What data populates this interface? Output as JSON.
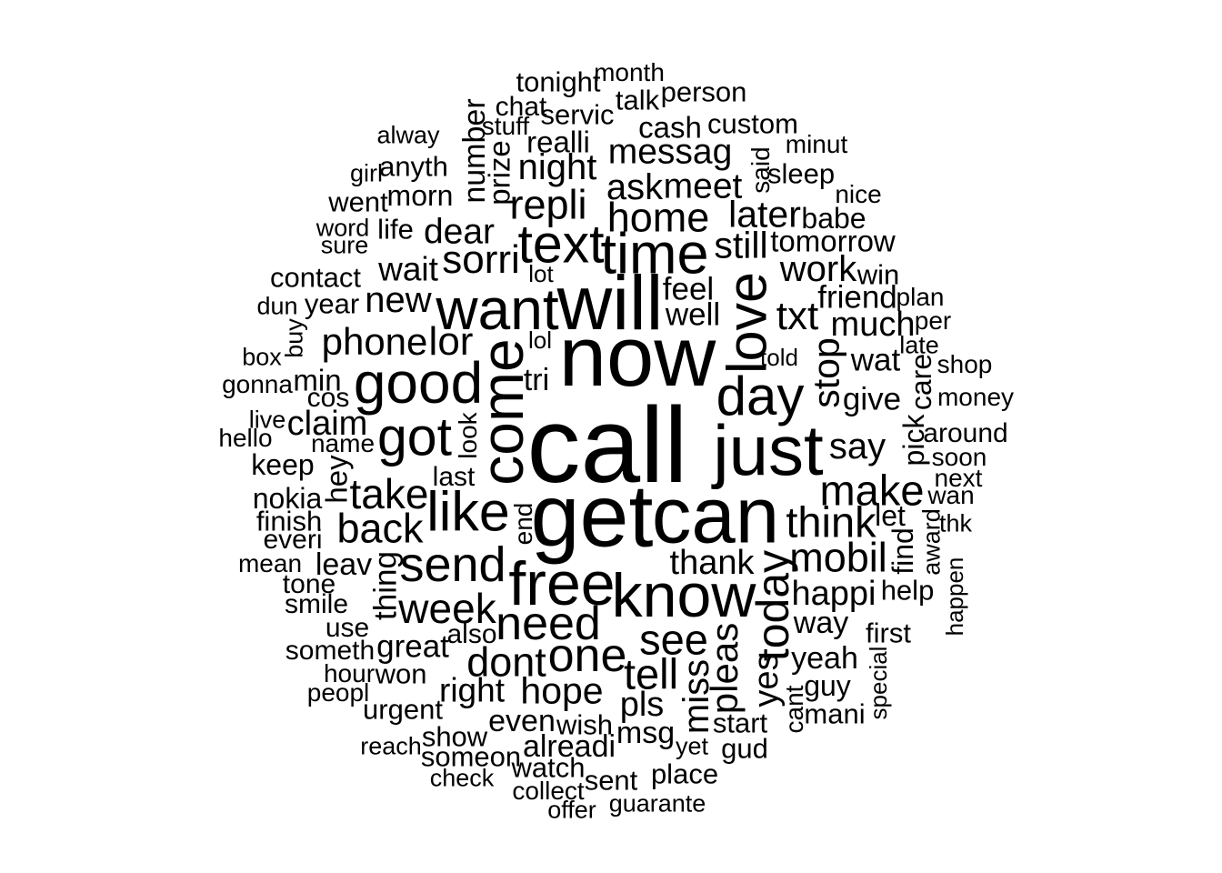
{
  "text_color": "#000000",
  "background": "#ffffff",
  "words": [
    {
      "text": "call",
      "weight": 1.0
    },
    {
      "text": "get",
      "weight": 0.82
    },
    {
      "text": "now",
      "weight": 0.8
    },
    {
      "text": "can",
      "weight": 0.74
    },
    {
      "text": "will",
      "weight": 0.71
    },
    {
      "text": "just",
      "weight": 0.66
    },
    {
      "text": "know",
      "weight": 0.58
    },
    {
      "text": "free",
      "weight": 0.58
    },
    {
      "text": "come",
      "weight": 0.56,
      "rot": true
    },
    {
      "text": "want",
      "weight": 0.54
    },
    {
      "text": "time",
      "weight": 0.53
    },
    {
      "text": "good",
      "weight": 0.54
    },
    {
      "text": "like",
      "weight": 0.52
    },
    {
      "text": "love",
      "weight": 0.52,
      "rot": true
    },
    {
      "text": "day",
      "weight": 0.51
    },
    {
      "text": "got",
      "weight": 0.5
    },
    {
      "text": "text",
      "weight": 0.5
    },
    {
      "text": "send",
      "weight": 0.46
    },
    {
      "text": "need",
      "weight": 0.44
    },
    {
      "text": "one",
      "weight": 0.44
    },
    {
      "text": "today",
      "weight": 0.42,
      "rot": true
    },
    {
      "text": "think",
      "weight": 0.4
    },
    {
      "text": "make",
      "weight": 0.4
    },
    {
      "text": "see",
      "weight": 0.4
    },
    {
      "text": "tell",
      "weight": 0.4
    },
    {
      "text": "take",
      "weight": 0.39
    },
    {
      "text": "week",
      "weight": 0.39
    },
    {
      "text": "back",
      "weight": 0.38
    },
    {
      "text": "dont",
      "weight": 0.38
    },
    {
      "text": "mobil",
      "weight": 0.38
    },
    {
      "text": "repli",
      "weight": 0.38
    },
    {
      "text": "home",
      "weight": 0.38
    },
    {
      "text": "lor",
      "weight": 0.37
    },
    {
      "text": "sorri",
      "weight": 0.37
    },
    {
      "text": "txt",
      "weight": 0.37
    },
    {
      "text": "phone",
      "weight": 0.36
    },
    {
      "text": "pleas",
      "weight": 0.36,
      "rot": true
    },
    {
      "text": "hope",
      "weight": 0.35
    },
    {
      "text": "stop",
      "weight": 0.35,
      "rot": true
    },
    {
      "text": "still",
      "weight": 0.35
    },
    {
      "text": "later",
      "weight": 0.35
    },
    {
      "text": "miss",
      "weight": 0.34,
      "rot": true
    },
    {
      "text": "night",
      "weight": 0.34
    },
    {
      "text": "say",
      "weight": 0.34
    },
    {
      "text": "work",
      "weight": 0.34
    },
    {
      "text": "new",
      "weight": 0.34
    },
    {
      "text": "ask",
      "weight": 0.34
    },
    {
      "text": "meet",
      "weight": 0.33
    },
    {
      "text": "messag",
      "weight": 0.33
    },
    {
      "text": "dear",
      "weight": 0.33
    },
    {
      "text": "happi",
      "weight": 0.32
    },
    {
      "text": "thank",
      "weight": 0.32
    },
    {
      "text": "pls",
      "weight": 0.32
    },
    {
      "text": "much",
      "weight": 0.32
    },
    {
      "text": "yes",
      "weight": 0.32,
      "rot": true
    },
    {
      "text": "claim",
      "weight": 0.32
    },
    {
      "text": "wait",
      "weight": 0.31
    },
    {
      "text": "right",
      "weight": 0.31
    },
    {
      "text": "great",
      "weight": 0.3
    },
    {
      "text": "friend",
      "weight": 0.3
    },
    {
      "text": "give",
      "weight": 0.3
    },
    {
      "text": "wat",
      "weight": 0.3
    },
    {
      "text": "thing",
      "weight": 0.3,
      "rot": true
    },
    {
      "text": "feel",
      "weight": 0.3
    },
    {
      "text": "well",
      "weight": 0.3
    },
    {
      "text": "even",
      "weight": 0.29
    },
    {
      "text": "number",
      "weight": 0.29,
      "rot": true
    },
    {
      "text": "way",
      "weight": 0.29
    },
    {
      "text": "alreadi",
      "weight": 0.29
    },
    {
      "text": "yeah",
      "weight": 0.29
    },
    {
      "text": "msg",
      "weight": 0.29
    },
    {
      "text": "leav",
      "weight": 0.29
    },
    {
      "text": "tri",
      "weight": 0.29
    },
    {
      "text": "cash",
      "weight": 0.28
    },
    {
      "text": "min",
      "weight": 0.28
    },
    {
      "text": "prize",
      "weight": 0.28,
      "rot": true
    },
    {
      "text": "tomorrow",
      "weight": 0.28
    },
    {
      "text": "hey",
      "weight": 0.28,
      "rot": true
    },
    {
      "text": "realli",
      "weight": 0.28
    },
    {
      "text": "babe",
      "weight": 0.27
    },
    {
      "text": "morn",
      "weight": 0.27
    },
    {
      "text": "keep",
      "weight": 0.27
    },
    {
      "text": "nokia",
      "weight": 0.27
    },
    {
      "text": "pick",
      "weight": 0.27,
      "rot": true
    },
    {
      "text": "let",
      "weight": 0.27
    },
    {
      "text": "find",
      "weight": 0.27,
      "rot": true
    },
    {
      "text": "care",
      "weight": 0.27,
      "rot": true
    },
    {
      "text": "guy",
      "weight": 0.27
    },
    {
      "text": "mani",
      "weight": 0.26
    },
    {
      "text": "first",
      "weight": 0.26
    },
    {
      "text": "help",
      "weight": 0.26
    },
    {
      "text": "wish",
      "weight": 0.26
    },
    {
      "text": "start",
      "weight": 0.26
    },
    {
      "text": "won",
      "weight": 0.26
    },
    {
      "text": "gud",
      "weight": 0.26
    },
    {
      "text": "sent",
      "weight": 0.26
    },
    {
      "text": "place",
      "weight": 0.26
    },
    {
      "text": "contact",
      "weight": 0.26
    },
    {
      "text": "finish",
      "weight": 0.26
    },
    {
      "text": "life",
      "weight": 0.26
    },
    {
      "text": "servic",
      "weight": 0.26
    },
    {
      "text": "talk",
      "weight": 0.26
    },
    {
      "text": "custom",
      "weight": 0.26
    },
    {
      "text": "sleep",
      "weight": 0.26
    },
    {
      "text": "win",
      "weight": 0.26
    },
    {
      "text": "urgent",
      "weight": 0.26
    },
    {
      "text": "show",
      "weight": 0.26
    },
    {
      "text": "someon",
      "weight": 0.26
    },
    {
      "text": "watch",
      "weight": 0.26
    },
    {
      "text": "tonight",
      "weight": 0.26
    },
    {
      "text": "person",
      "weight": 0.26
    },
    {
      "text": "anyth",
      "weight": 0.26
    },
    {
      "text": "went",
      "weight": 0.26
    },
    {
      "text": "year",
      "weight": 0.26
    },
    {
      "text": "cos",
      "weight": 0.25
    },
    {
      "text": "name",
      "weight": 0.24
    },
    {
      "text": "everi",
      "weight": 0.25
    },
    {
      "text": "tone",
      "weight": 0.25
    },
    {
      "text": "smile",
      "weight": 0.25
    },
    {
      "text": "use",
      "weight": 0.25
    },
    {
      "text": "someth",
      "weight": 0.25
    },
    {
      "text": "hour",
      "weight": 0.24
    },
    {
      "text": "peopl",
      "weight": 0.24
    },
    {
      "text": "also",
      "weight": 0.25
    },
    {
      "text": "last",
      "weight": 0.25
    },
    {
      "text": "end",
      "weight": 0.24,
      "rot": true
    },
    {
      "text": "look",
      "weight": 0.24,
      "rot": true
    },
    {
      "text": "chat",
      "weight": 0.25
    },
    {
      "text": "stuff",
      "weight": 0.24
    },
    {
      "text": "month",
      "weight": 0.24
    },
    {
      "text": "said",
      "weight": 0.24,
      "rot": true
    },
    {
      "text": "minut",
      "weight": 0.24
    },
    {
      "text": "nice",
      "weight": 0.24
    },
    {
      "text": "plan",
      "weight": 0.24
    },
    {
      "text": "per",
      "weight": 0.24
    },
    {
      "text": "late",
      "weight": 0.23
    },
    {
      "text": "shop",
      "weight": 0.24
    },
    {
      "text": "money",
      "weight": 0.24
    },
    {
      "text": "around",
      "weight": 0.25
    },
    {
      "text": "soon",
      "weight": 0.24
    },
    {
      "text": "next",
      "weight": 0.24
    },
    {
      "text": "wan",
      "weight": 0.24
    },
    {
      "text": "thk",
      "weight": 0.23
    },
    {
      "text": "award",
      "weight": 0.23,
      "rot": true
    },
    {
      "text": "happen",
      "weight": 0.22,
      "rot": true
    },
    {
      "text": "special",
      "weight": 0.22,
      "rot": true
    },
    {
      "text": "cant",
      "weight": 0.24,
      "rot": true
    },
    {
      "text": "yet",
      "weight": 0.23
    },
    {
      "text": "guarante",
      "weight": 0.23
    },
    {
      "text": "offer",
      "weight": 0.23
    },
    {
      "text": "collect",
      "weight": 0.24
    },
    {
      "text": "check",
      "weight": 0.23
    },
    {
      "text": "reach",
      "weight": 0.23
    },
    {
      "text": "mean",
      "weight": 0.24
    },
    {
      "text": "hello",
      "weight": 0.24
    },
    {
      "text": "live",
      "weight": 0.23
    },
    {
      "text": "gonna",
      "weight": 0.24
    },
    {
      "text": "box",
      "weight": 0.23
    },
    {
      "text": "buy",
      "weight": 0.23,
      "rot": true
    },
    {
      "text": "dun",
      "weight": 0.23
    },
    {
      "text": "word",
      "weight": 0.23
    },
    {
      "text": "sure",
      "weight": 0.23
    },
    {
      "text": "girl",
      "weight": 0.23
    },
    {
      "text": "alway",
      "weight": 0.23
    },
    {
      "text": "lot",
      "weight": 0.22
    },
    {
      "text": "lol",
      "weight": 0.22
    },
    {
      "text": "told",
      "weight": 0.22
    }
  ]
}
